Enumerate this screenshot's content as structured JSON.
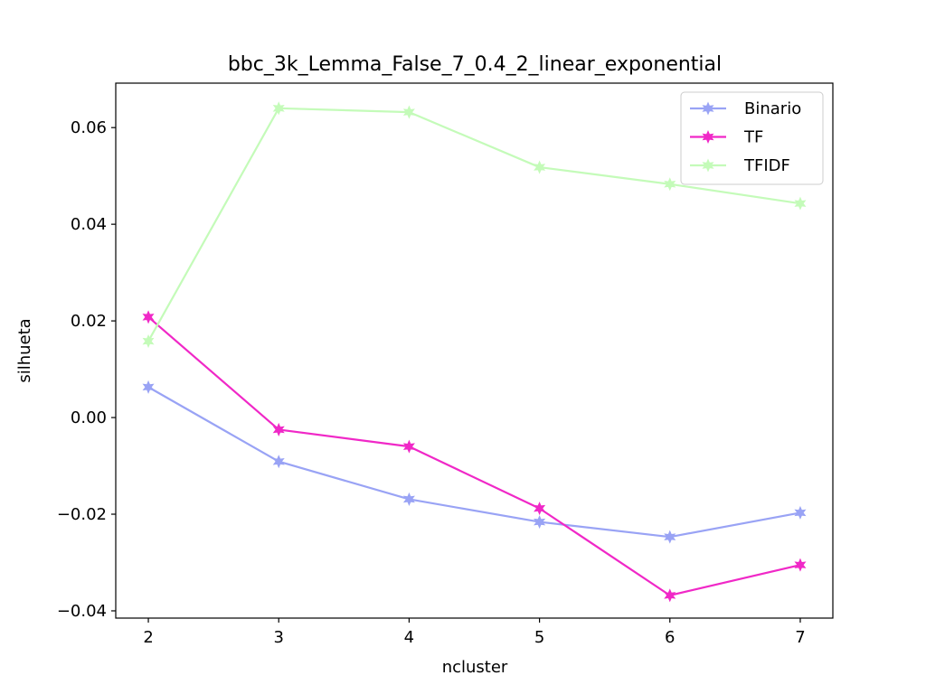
{
  "chart_data": {
    "type": "line",
    "title": "bbc_3k_Lemma_False_7_0.4_2_linear_exponential",
    "xlabel": "ncluster",
    "ylabel": "silhueta",
    "x": [
      2,
      3,
      4,
      5,
      6,
      7
    ],
    "xlim": [
      1.75,
      7.25
    ],
    "ylim": [
      -0.0415,
      0.0692
    ],
    "xticks": [
      2,
      3,
      4,
      5,
      6,
      7
    ],
    "xtick_labels": [
      "2",
      "3",
      "4",
      "5",
      "6",
      "7"
    ],
    "yticks": [
      -0.04,
      -0.02,
      0.0,
      0.02,
      0.04,
      0.06
    ],
    "ytick_labels": [
      "−0.04",
      "−0.02",
      "0.00",
      "0.02",
      "0.04",
      "0.06"
    ],
    "grid": false,
    "legend_position": "upper right",
    "series": [
      {
        "name": "Binario",
        "color": "#99a3f5",
        "marker": "star",
        "values": [
          0.0063,
          -0.0091,
          -0.0169,
          -0.0216,
          -0.0247,
          -0.0197
        ]
      },
      {
        "name": "TF",
        "color": "#f028c7",
        "marker": "star",
        "values": [
          0.0208,
          -0.0025,
          -0.006,
          -0.0188,
          -0.0368,
          -0.0305
        ]
      },
      {
        "name": "TFIDF",
        "color": "#c4fbb9",
        "marker": "star",
        "values": [
          0.0158,
          0.064,
          0.0632,
          0.0518,
          0.0483,
          0.0443
        ]
      }
    ]
  }
}
